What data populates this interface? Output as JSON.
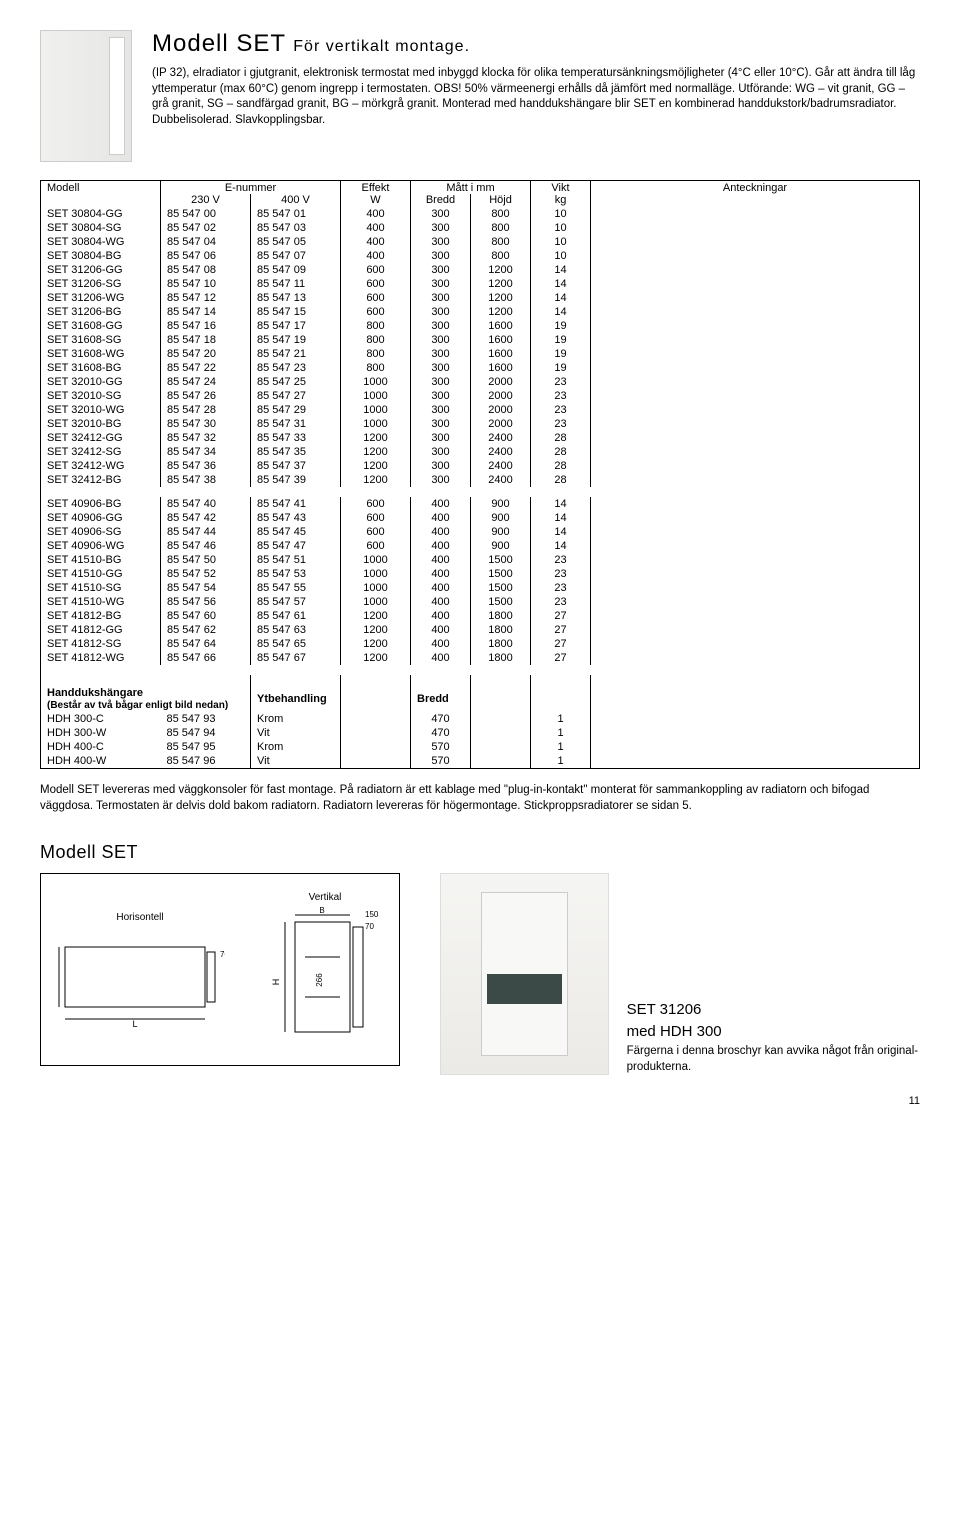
{
  "title_main": "Modell SET",
  "title_sub": "För vertikalt montage.",
  "intro": "(IP 32), elradiator i gjutgranit, elektronisk termostat med inbyggd klocka för olika temperatursänknings­möjligheter (4°C eller 10°C). Går att ändra till låg yttemperatur (max 60°C) genom ingrepp i termostaten. OBS! 50% värmeenergi erhålls då jämfört med normalläge. Utförande: WG – vit granit, GG – grå granit, SG – sandfärgad granit, BG – mörkgrå granit. Monterad med handdukshängare blir SET en kombinerad handdukstork/badrumsradiator. Dubbelisolerad. Slavkopplingsbar.",
  "columns": {
    "modell": "Modell",
    "enummer": "E-nummer",
    "v230": "230 V",
    "v400": "400 V",
    "effekt": "Effekt",
    "w": "W",
    "matt": "Mått i mm",
    "bredd": "Bredd",
    "hojd": "Höjd",
    "vikt": "Vikt",
    "kg": "kg",
    "anteckningar": "Anteckningar"
  },
  "rows1": [
    [
      "SET 30804-GG",
      "85 547 00",
      "85 547 01",
      "400",
      "300",
      "800",
      "10"
    ],
    [
      "SET 30804-SG",
      "85 547 02",
      "85 547 03",
      "400",
      "300",
      "800",
      "10"
    ],
    [
      "SET 30804-WG",
      "85 547 04",
      "85 547 05",
      "400",
      "300",
      "800",
      "10"
    ],
    [
      "SET 30804-BG",
      "85 547 06",
      "85 547 07",
      "400",
      "300",
      "800",
      "10"
    ],
    [
      "SET 31206-GG",
      "85 547 08",
      "85 547 09",
      "600",
      "300",
      "1200",
      "14"
    ],
    [
      "SET 31206-SG",
      "85 547 10",
      "85 547 11",
      "600",
      "300",
      "1200",
      "14"
    ],
    [
      "SET 31206-WG",
      "85 547 12",
      "85 547 13",
      "600",
      "300",
      "1200",
      "14"
    ],
    [
      "SET 31206-BG",
      "85 547 14",
      "85 547 15",
      "600",
      "300",
      "1200",
      "14"
    ],
    [
      "SET 31608-GG",
      "85 547 16",
      "85 547 17",
      "800",
      "300",
      "1600",
      "19"
    ],
    [
      "SET 31608-SG",
      "85 547 18",
      "85 547 19",
      "800",
      "300",
      "1600",
      "19"
    ],
    [
      "SET 31608-WG",
      "85 547 20",
      "85 547 21",
      "800",
      "300",
      "1600",
      "19"
    ],
    [
      "SET 31608-BG",
      "85 547 22",
      "85 547 23",
      "800",
      "300",
      "1600",
      "19"
    ],
    [
      "SET 32010-GG",
      "85 547 24",
      "85 547 25",
      "1000",
      "300",
      "2000",
      "23"
    ],
    [
      "SET 32010-SG",
      "85 547 26",
      "85 547 27",
      "1000",
      "300",
      "2000",
      "23"
    ],
    [
      "SET 32010-WG",
      "85 547 28",
      "85 547 29",
      "1000",
      "300",
      "2000",
      "23"
    ],
    [
      "SET 32010-BG",
      "85 547 30",
      "85 547 31",
      "1000",
      "300",
      "2000",
      "23"
    ],
    [
      "SET 32412-GG",
      "85 547 32",
      "85 547 33",
      "1200",
      "300",
      "2400",
      "28"
    ],
    [
      "SET 32412-SG",
      "85 547 34",
      "85 547 35",
      "1200",
      "300",
      "2400",
      "28"
    ],
    [
      "SET 32412-WG",
      "85 547 36",
      "85 547 37",
      "1200",
      "300",
      "2400",
      "28"
    ],
    [
      "SET 32412-BG",
      "85 547 38",
      "85 547 39",
      "1200",
      "300",
      "2400",
      "28"
    ]
  ],
  "rows2": [
    [
      "SET 40906-BG",
      "85 547 40",
      "85 547 41",
      "600",
      "400",
      "900",
      "14"
    ],
    [
      "SET 40906-GG",
      "85 547 42",
      "85 547 43",
      "600",
      "400",
      "900",
      "14"
    ],
    [
      "SET 40906-SG",
      "85 547 44",
      "85 547 45",
      "600",
      "400",
      "900",
      "14"
    ],
    [
      "SET 40906-WG",
      "85 547 46",
      "85 547 47",
      "600",
      "400",
      "900",
      "14"
    ],
    [
      "SET 41510-BG",
      "85 547 50",
      "85 547 51",
      "1000",
      "400",
      "1500",
      "23"
    ],
    [
      "SET 41510-GG",
      "85 547 52",
      "85 547 53",
      "1000",
      "400",
      "1500",
      "23"
    ],
    [
      "SET 41510-SG",
      "85 547 54",
      "85 547 55",
      "1000",
      "400",
      "1500",
      "23"
    ],
    [
      "SET 41510-WG",
      "85 547 56",
      "85 547 57",
      "1000",
      "400",
      "1500",
      "23"
    ],
    [
      "SET 41812-BG",
      "85 547 60",
      "85 547 61",
      "1200",
      "400",
      "1800",
      "27"
    ],
    [
      "SET 41812-GG",
      "85 547 62",
      "85 547 63",
      "1200",
      "400",
      "1800",
      "27"
    ],
    [
      "SET 41812-SG",
      "85 547 64",
      "85 547 65",
      "1200",
      "400",
      "1800",
      "27"
    ],
    [
      "SET 41812-WG",
      "85 547 66",
      "85 547 67",
      "1200",
      "400",
      "1800",
      "27"
    ]
  ],
  "hanger_head": {
    "h1": "Handdukshängare",
    "note": "(Består av två bågar enligt bild nedan)",
    "ytb": "Ytbehandling",
    "bredd": "Bredd"
  },
  "rows3": [
    [
      "HDH 300-C",
      "85 547 93",
      "Krom",
      "470",
      "1"
    ],
    [
      "HDH 300-W",
      "85 547 94",
      "Vit",
      "470",
      "1"
    ],
    [
      "HDH 400-C",
      "85 547 95",
      "Krom",
      "570",
      "1"
    ],
    [
      "HDH 400-W",
      "85 547 96",
      "Vit",
      "570",
      "1"
    ]
  ],
  "footnote": "Modell SET levereras med väggkonsoler för fast montage. På radiatorn är ett kablage med \"plug-in-kontakt\" monterat för sammankoppling av radiatorn och bifogad väggdosa. Termostaten är delvis dold bakom radiatorn. Radiatorn levereras för högermontage. Stickproppsradiatorer se sidan 5.",
  "section2": "Modell SET",
  "diagram": {
    "horisontell": "Horisontell",
    "vertikal": "Vertikal"
  },
  "photo_caption": {
    "title1": "SET 31206",
    "title2": "med HDH 300",
    "body": "Färgerna i denna broschyr kan avvika något från original­produkterna."
  },
  "page": "11"
}
